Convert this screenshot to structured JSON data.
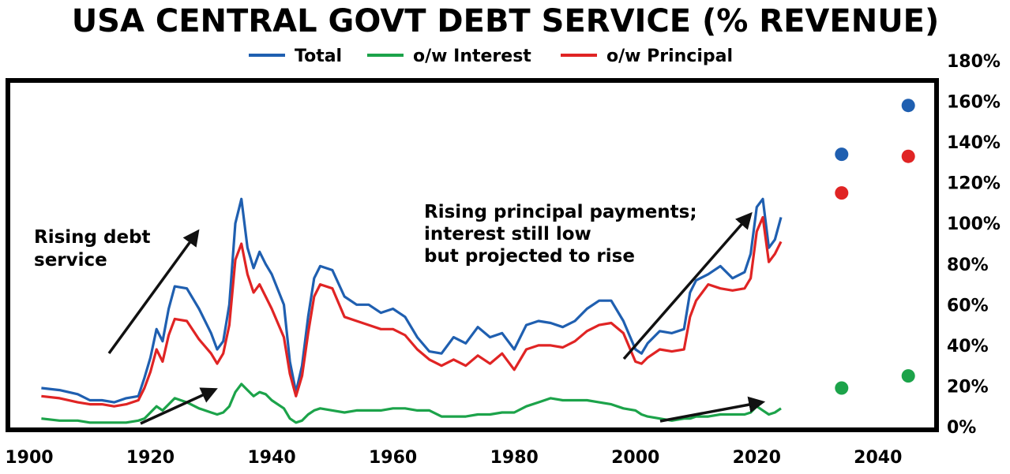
{
  "chart_data": {
    "type": "line",
    "title": "USA CENTRAL GOVT DEBT SERVICE (% REVENUE)",
    "legend_position": "top-center",
    "xlabel": "",
    "ylabel": "",
    "xlim": [
      1900,
      2055
    ],
    "ylim": [
      0,
      180
    ],
    "x_ticks": [
      1900,
      1920,
      1940,
      1960,
      1980,
      2000,
      2020,
      2040
    ],
    "x_tick_labels": [
      "1900",
      "1920",
      "1940",
      "1960",
      "1980",
      "2000",
      "2020",
      "2040"
    ],
    "y_ticks": [
      0,
      20,
      40,
      60,
      80,
      100,
      120,
      140,
      160,
      180
    ],
    "y_tick_labels": [
      "0%",
      "20%",
      "40%",
      "60%",
      "80%",
      "100%",
      "120%",
      "140%",
      "160%",
      "180%"
    ],
    "y_axis_side": "right",
    "grid": false,
    "series": [
      {
        "name": "Total",
        "color": "#1f5fb0",
        "x": [
          1902,
          1905,
          1908,
          1910,
          1912,
          1914,
          1916,
          1918,
          1919,
          1920,
          1921,
          1922,
          1923,
          1924,
          1926,
          1928,
          1930,
          1931,
          1932,
          1933,
          1934,
          1935,
          1936,
          1937,
          1938,
          1939,
          1940,
          1942,
          1943,
          1944,
          1945,
          1946,
          1947,
          1948,
          1950,
          1952,
          1954,
          1956,
          1958,
          1960,
          1962,
          1964,
          1966,
          1968,
          1970,
          1972,
          1974,
          1976,
          1978,
          1980,
          1982,
          1984,
          1986,
          1988,
          1990,
          1992,
          1994,
          1996,
          1998,
          2000,
          2001,
          2002,
          2004,
          2006,
          2008,
          2009,
          2010,
          2012,
          2014,
          2016,
          2018,
          2019,
          2020,
          2021,
          2022,
          2023,
          2024
        ],
        "y": [
          19,
          18,
          16,
          13,
          13,
          12,
          14,
          15,
          24,
          34,
          48,
          42,
          58,
          69,
          68,
          58,
          46,
          38,
          42,
          60,
          100,
          112,
          88,
          78,
          86,
          80,
          75,
          60,
          32,
          17,
          30,
          54,
          73,
          79,
          77,
          64,
          60,
          60,
          56,
          58,
          54,
          44,
          37,
          36,
          44,
          41,
          49,
          44,
          46,
          38,
          50,
          52,
          51,
          49,
          52,
          58,
          62,
          62,
          52,
          38,
          36,
          41,
          47,
          46,
          48,
          66,
          72,
          75,
          79,
          73,
          76,
          85,
          108,
          112,
          88,
          92,
          103
        ]
      },
      {
        "name": "o/w Principal",
        "color": "#e02424",
        "x": [
          1902,
          1905,
          1908,
          1910,
          1912,
          1914,
          1916,
          1918,
          1919,
          1920,
          1921,
          1922,
          1923,
          1924,
          1926,
          1928,
          1930,
          1931,
          1932,
          1933,
          1934,
          1935,
          1936,
          1937,
          1938,
          1939,
          1940,
          1942,
          1943,
          1944,
          1945,
          1946,
          1947,
          1948,
          1950,
          1952,
          1954,
          1956,
          1958,
          1960,
          1962,
          1964,
          1966,
          1968,
          1970,
          1972,
          1974,
          1976,
          1978,
          1980,
          1982,
          1984,
          1986,
          1988,
          1990,
          1992,
          1994,
          1996,
          1998,
          2000,
          2001,
          2002,
          2004,
          2006,
          2008,
          2009,
          2010,
          2012,
          2014,
          2016,
          2018,
          2019,
          2020,
          2021,
          2022,
          2023,
          2024
        ],
        "y": [
          15,
          14,
          12,
          11,
          11,
          10,
          11,
          13,
          19,
          27,
          38,
          32,
          45,
          53,
          52,
          43,
          36,
          31,
          36,
          50,
          82,
          90,
          75,
          66,
          70,
          64,
          58,
          44,
          26,
          15,
          25,
          46,
          64,
          70,
          68,
          54,
          52,
          50,
          48,
          48,
          45,
          38,
          33,
          30,
          33,
          30,
          35,
          31,
          36,
          28,
          38,
          40,
          40,
          39,
          42,
          47,
          50,
          51,
          46,
          32,
          31,
          34,
          38,
          37,
          38,
          54,
          62,
          70,
          68,
          67,
          68,
          73,
          96,
          103,
          81,
          85,
          91
        ]
      },
      {
        "name": "o/w Interest",
        "color": "#1ca34a",
        "x": [
          1902,
          1905,
          1908,
          1910,
          1912,
          1914,
          1916,
          1918,
          1919,
          1920,
          1921,
          1922,
          1923,
          1924,
          1926,
          1928,
          1930,
          1931,
          1932,
          1933,
          1934,
          1935,
          1936,
          1937,
          1938,
          1939,
          1940,
          1942,
          1943,
          1944,
          1945,
          1946,
          1947,
          1948,
          1950,
          1952,
          1954,
          1956,
          1958,
          1960,
          1962,
          1964,
          1966,
          1968,
          1970,
          1972,
          1974,
          1976,
          1978,
          1980,
          1982,
          1984,
          1986,
          1988,
          1990,
          1992,
          1994,
          1996,
          1998,
          2000,
          2001,
          2002,
          2004,
          2006,
          2008,
          2009,
          2010,
          2012,
          2014,
          2016,
          2018,
          2019,
          2020,
          2021,
          2022,
          2023,
          2024
        ],
        "y": [
          4,
          3,
          3,
          2,
          2,
          2,
          2,
          3,
          4,
          7,
          10,
          8,
          11,
          14,
          12,
          9,
          7,
          6,
          7,
          10,
          17,
          21,
          18,
          15,
          17,
          16,
          13,
          9,
          4,
          2,
          3,
          6,
          8,
          9,
          8,
          7,
          8,
          8,
          8,
          9,
          9,
          8,
          8,
          5,
          5,
          5,
          6,
          6,
          7,
          7,
          10,
          12,
          14,
          13,
          13,
          13,
          12,
          11,
          9,
          8,
          6,
          5,
          4,
          3,
          4,
          4,
          5,
          5,
          6,
          6,
          6,
          7,
          10,
          8,
          6,
          7,
          9
        ]
      }
    ],
    "projections": [
      {
        "series": "Total",
        "color": "#1f5fb0",
        "x": [
          2034,
          2045
        ],
        "y": [
          134,
          158
        ]
      },
      {
        "series": "o/w Principal",
        "color": "#e02424",
        "x": [
          2034,
          2045
        ],
        "y": [
          115,
          133
        ]
      },
      {
        "series": "o/w Interest",
        "color": "#1ca34a",
        "x": [
          2034,
          2045
        ],
        "y": [
          19,
          25
        ]
      }
    ],
    "annotations": [
      {
        "lines": [
          "Rising debt",
          "service"
        ]
      },
      {
        "lines": [
          "Rising principal payments;",
          "interest still low",
          "but projected to rise"
        ]
      }
    ],
    "arrow_color": "#111111"
  }
}
